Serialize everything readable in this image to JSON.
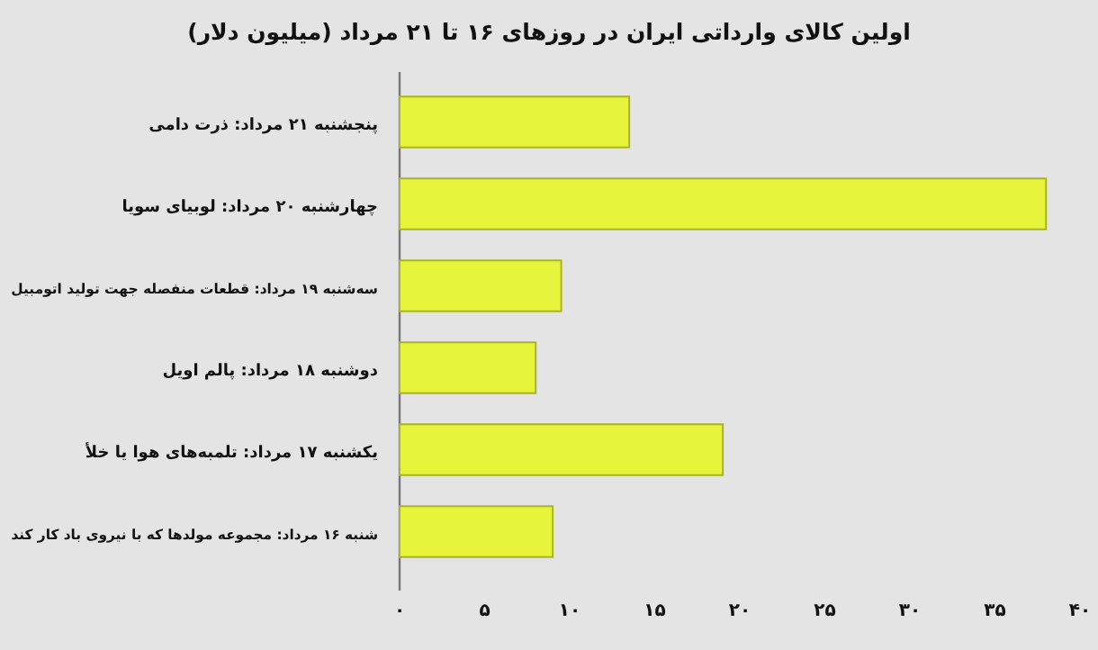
{
  "chart_data": {
    "type": "bar",
    "orientation": "horizontal",
    "title": "اولین کالای وارداتی ایران در روزهای ۱۶ تا ۲۱ مرداد (میلیون دلار)",
    "categories": [
      "پنجشنبه ۲۱ مرداد: ذرت دامی",
      "چهارشنبه ۲۰ مرداد: لوبیای سویا",
      "سه‌شنبه ۱۹ مرداد: قطعات منفصله جهت تولید اتومبیل",
      "دوشنبه ۱۸ مرداد: پالم اویل",
      "یکشنبه ۱۷ مرداد: تلمبه‌های هوا یا خلأ",
      "شنبه ۱۶ مرداد: مجموعه مولدها که با نیروی باد کار کند"
    ],
    "series": [
      {
        "color": "#e6f53c",
        "values": [
          13.5,
          38,
          9.5,
          8,
          19,
          9
        ]
      }
    ],
    "xlim": [
      0,
      40
    ],
    "xticks": [
      {
        "value": 0,
        "label": "۰"
      },
      {
        "value": 5,
        "label": "۵"
      },
      {
        "value": 10,
        "label": "۱۰"
      },
      {
        "value": 15,
        "label": "۱۵"
      },
      {
        "value": 20,
        "label": "۲۰"
      },
      {
        "value": 25,
        "label": "۲۵"
      },
      {
        "value": 30,
        "label": "۳۰"
      },
      {
        "value": 35,
        "label": "۳۵"
      },
      {
        "value": 40,
        "label": "۴۰"
      }
    ],
    "grid": false
  }
}
